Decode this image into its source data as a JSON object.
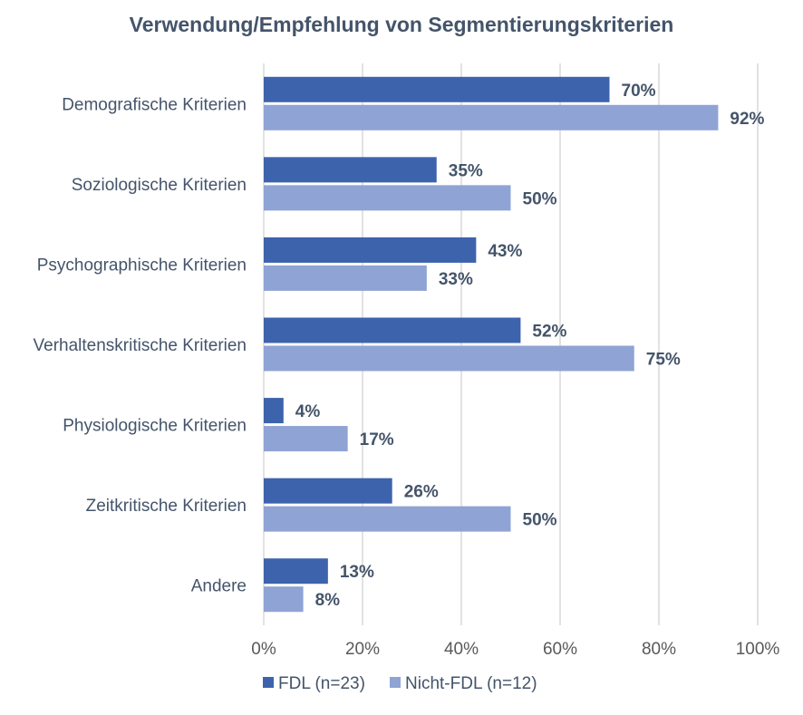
{
  "chart_data": {
    "type": "bar",
    "orientation": "horizontal",
    "title": "Verwendung/Empfehlung von Segmentierungskriterien",
    "categories": [
      "Demografische Kriterien",
      "Soziologische Kriterien",
      "Psychographische Kriterien",
      "Verhaltenskritische Kriterien",
      "Physiologische Kriterien",
      "Zeitkritische Kriterien",
      "Andere"
    ],
    "series": [
      {
        "name": "FDL (n=23)",
        "color": "#3e63ad",
        "values": [
          70,
          35,
          43,
          52,
          4,
          26,
          13
        ]
      },
      {
        "name": "Nicht-FDL (n=12)",
        "color": "#8fa3d4",
        "values": [
          92,
          50,
          33,
          75,
          17,
          50,
          8
        ]
      }
    ],
    "value_suffix": "%",
    "xlim": [
      0,
      100
    ],
    "xticks": [
      0,
      20,
      40,
      60,
      80,
      100
    ],
    "xtick_labels": [
      "0%",
      "20%",
      "40%",
      "60%",
      "80%",
      "100%"
    ],
    "grid": "vertical",
    "legend": "bottom"
  }
}
